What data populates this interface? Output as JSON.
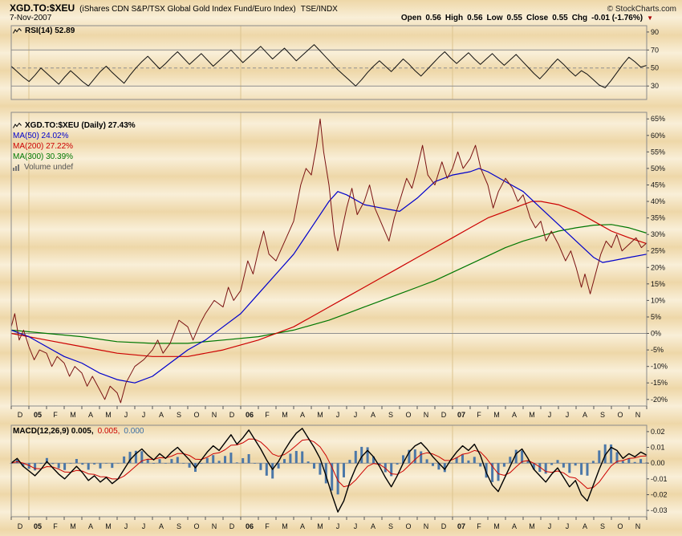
{
  "header": {
    "symbol": "XGD.TO:$XEU",
    "description": "(iShares CDN S&P/TSX Global Gold Index Fund/Euro Index)",
    "exchange": "TSE/INDX",
    "copyright": "© StockCharts.com",
    "date": "7-Nov-2007",
    "quote": {
      "open_label": "Open",
      "open": "0.56",
      "high_label": "High",
      "high": "0.56",
      "low_label": "Low",
      "low": "0.55",
      "close_label": "Close",
      "close": "0.55",
      "chg_label": "Chg",
      "chg": "-0.01 (-1.76%)",
      "chg_arrow": "▼"
    }
  },
  "legends": {
    "rsi": "RSI(14) 52.89",
    "price": [
      {
        "label": "XGD.TO:$XEU (Daily) 27.43%",
        "color": "#000000",
        "bold": true,
        "icon": "price-line-icon"
      },
      {
        "label": "MA(50) 24.02%",
        "color": "#0000CC",
        "bold": false,
        "icon": null
      },
      {
        "label": "MA(200) 27.22%",
        "color": "#CC0000",
        "bold": false,
        "icon": null
      },
      {
        "label": "MA(300) 30.39%",
        "color": "#007700",
        "bold": false,
        "icon": null
      },
      {
        "label": "Volume undef",
        "color": "#555555",
        "bold": false,
        "icon": "volume-bars-icon"
      }
    ],
    "macd": [
      {
        "text": "MACD(12,26,9) 0.005,",
        "color": "#000000"
      },
      {
        "text": "0.005,",
        "color": "#CC0000"
      },
      {
        "text": "0.000",
        "color": "#3A6EA5"
      }
    ]
  },
  "colors": {
    "background_band_dark": "#eed7a8",
    "background_band_light": "#f9efd8",
    "panel_border": "#8a8a8a",
    "price_line": "#7a1212",
    "ma50": "#0000CC",
    "ma200": "#CC0000",
    "ma300": "#007700",
    "rsi_line": "#111111",
    "macd_line": "#000000",
    "macd_signal": "#CC0000",
    "macd_histogram": "#4B77A8",
    "chg_arrow": "#AA0000"
  },
  "x_axis": {
    "year_positions": [
      1,
      13,
      25
    ],
    "labels": [
      {
        "label": "D"
      },
      {
        "label": "05",
        "bold": true
      },
      {
        "label": "F"
      },
      {
        "label": "M"
      },
      {
        "label": "A"
      },
      {
        "label": "M"
      },
      {
        "label": "J"
      },
      {
        "label": "J"
      },
      {
        "label": "A"
      },
      {
        "label": "S"
      },
      {
        "label": "O"
      },
      {
        "label": "N"
      },
      {
        "label": "D"
      },
      {
        "label": "06",
        "bold": true
      },
      {
        "label": "F"
      },
      {
        "label": "M"
      },
      {
        "label": "A"
      },
      {
        "label": "M"
      },
      {
        "label": "J"
      },
      {
        "label": "J"
      },
      {
        "label": "A"
      },
      {
        "label": "S"
      },
      {
        "label": "O"
      },
      {
        "label": "N"
      },
      {
        "label": "D"
      },
      {
        "label": "07",
        "bold": true
      },
      {
        "label": "F"
      },
      {
        "label": "M"
      },
      {
        "label": "A"
      },
      {
        "label": "M"
      },
      {
        "label": "J"
      },
      {
        "label": "J"
      },
      {
        "label": "A"
      },
      {
        "label": "S"
      },
      {
        "label": "O"
      },
      {
        "label": "N"
      }
    ]
  },
  "chart_data": [
    {
      "type": "line",
      "title": "RSI(14)",
      "current_value": 52.89,
      "xlim": [
        0,
        36
      ],
      "ylim": [
        15,
        97
      ],
      "yticks": [
        {
          "v": 90,
          "label": "90"
        },
        {
          "v": 70,
          "label": "70"
        },
        {
          "v": 50,
          "label": "50"
        },
        {
          "v": 30,
          "label": "30"
        }
      ],
      "hlines": [
        {
          "v": 70,
          "style": "solid"
        },
        {
          "v": 50,
          "style": "dash"
        },
        {
          "v": 30,
          "style": "solid"
        }
      ],
      "series": [
        {
          "name": "RSI(14)",
          "color": "#111111",
          "width": 1,
          "values": [
            52,
            46,
            40,
            35,
            42,
            50,
            44,
            38,
            32,
            40,
            47,
            41,
            35,
            30,
            38,
            46,
            52,
            45,
            39,
            33,
            42,
            50,
            57,
            63,
            56,
            49,
            55,
            62,
            68,
            61,
            54,
            60,
            66,
            59,
            52,
            58,
            64,
            70,
            63,
            56,
            62,
            68,
            74,
            67,
            60,
            66,
            72,
            65,
            58,
            64,
            70,
            76,
            69,
            62,
            55,
            48,
            42,
            36,
            30,
            37,
            45,
            52,
            58,
            52,
            46,
            53,
            60,
            54,
            47,
            41,
            48,
            55,
            62,
            68,
            61,
            55,
            61,
            67,
            60,
            54,
            60,
            66,
            59,
            53,
            59,
            65,
            58,
            51,
            44,
            38,
            45,
            53,
            60,
            54,
            47,
            41,
            47,
            43,
            37,
            31,
            28,
            36,
            45,
            54,
            62,
            57,
            51,
            52.9
          ]
        }
      ]
    },
    {
      "type": "line",
      "title": "XGD.TO:$XEU (Daily)",
      "current_value": 27.43,
      "xlim": [
        0,
        36
      ],
      "ylim": [
        -22,
        67
      ],
      "yticks": [
        {
          "v": 65,
          "label": "65%"
        },
        {
          "v": 60,
          "label": "60%"
        },
        {
          "v": 55,
          "label": "55%"
        },
        {
          "v": 50,
          "label": "50%"
        },
        {
          "v": 45,
          "label": "45%"
        },
        {
          "v": 40,
          "label": "40%"
        },
        {
          "v": 35,
          "label": "35%"
        },
        {
          "v": 30,
          "label": "30%"
        },
        {
          "v": 25,
          "label": "25%"
        },
        {
          "v": 20,
          "label": "20%"
        },
        {
          "v": 15,
          "label": "15%"
        },
        {
          "v": 10,
          "label": "10%"
        },
        {
          "v": 5,
          "label": "5%"
        },
        {
          "v": 0,
          "label": "0%"
        },
        {
          "v": -5,
          "label": "-5%"
        },
        {
          "v": -10,
          "label": "-10%"
        },
        {
          "v": -15,
          "label": "-15%"
        },
        {
          "v": -20,
          "label": "-20%"
        }
      ],
      "hlines": [
        {
          "v": 0,
          "style": "solid"
        }
      ],
      "series": [
        {
          "name": "XGD.TO:$XEU",
          "color": "#7a1212",
          "width": 1,
          "x": [
            0,
            0.2,
            0.45,
            0.7,
            1.0,
            1.3,
            1.6,
            2.0,
            2.3,
            2.6,
            3.0,
            3.3,
            3.6,
            4.0,
            4.3,
            4.6,
            5.0,
            5.3,
            5.6,
            6.0,
            6.2,
            6.5,
            7.0,
            7.5,
            8.0,
            8.3,
            8.6,
            9.0,
            9.5,
            10.0,
            10.3,
            10.7,
            11.0,
            11.5,
            12.0,
            12.3,
            12.6,
            13.0,
            13.4,
            13.7,
            14.0,
            14.3,
            14.6,
            15.0,
            15.5,
            16.0,
            16.4,
            16.7,
            17.0,
            17.3,
            17.5,
            17.7,
            18.0,
            18.3,
            18.5,
            18.8,
            19.0,
            19.3,
            19.6,
            20.0,
            20.3,
            20.6,
            21.0,
            21.4,
            21.7,
            22.0,
            22.4,
            22.7,
            23.0,
            23.3,
            23.6,
            24.0,
            24.4,
            24.7,
            25.0,
            25.3,
            25.6,
            26.0,
            26.3,
            26.6,
            27.0,
            27.3,
            27.6,
            28.0,
            28.4,
            28.7,
            29.0,
            29.4,
            29.7,
            30.0,
            30.3,
            30.6,
            31.0,
            31.4,
            31.7,
            32.0,
            32.3,
            32.5,
            32.8,
            33.0,
            33.4,
            33.7,
            34.0,
            34.3,
            34.6,
            35.0,
            35.4,
            35.7,
            36.0
          ],
          "y": [
            2,
            6,
            -2,
            1,
            -4,
            -8,
            -5,
            -6,
            -10,
            -7,
            -9,
            -13,
            -10,
            -12,
            -16,
            -13,
            -17,
            -20,
            -16,
            -18,
            -21,
            -15,
            -10,
            -8,
            -5,
            -2,
            -6,
            -3,
            4,
            2,
            -2,
            3,
            6,
            10,
            8,
            14,
            10,
            13,
            22,
            18,
            25,
            31,
            24,
            22,
            28,
            34,
            45,
            50,
            48,
            57,
            65,
            55,
            45,
            30,
            25,
            33,
            38,
            44,
            36,
            40,
            45,
            38,
            33,
            28,
            35,
            40,
            47,
            44,
            50,
            57,
            48,
            45,
            52,
            47,
            50,
            55,
            50,
            53,
            57,
            50,
            45,
            38,
            43,
            47,
            44,
            40,
            42,
            35,
            32,
            34,
            28,
            31,
            27,
            22,
            25,
            20,
            14,
            18,
            12,
            16,
            24,
            28,
            26,
            30,
            25,
            27,
            29,
            26,
            27.4
          ]
        },
        {
          "name": "MA(50)",
          "color": "#0000CC",
          "width": 1.2,
          "x": [
            0,
            1,
            2,
            3,
            4,
            5,
            6,
            7,
            8,
            9,
            10,
            11,
            12,
            13,
            14,
            15,
            16,
            17,
            18,
            18.5,
            19,
            20,
            21,
            22,
            23,
            24,
            25,
            26,
            26.5,
            27,
            28,
            29,
            30,
            31,
            32,
            33,
            33.5,
            34,
            35,
            36
          ],
          "y": [
            1,
            -1,
            -4,
            -7,
            -9,
            -12,
            -14,
            -15,
            -13,
            -9,
            -5,
            -2,
            2,
            6,
            12,
            18,
            24,
            32,
            40,
            43,
            42,
            39,
            38,
            37,
            41,
            46,
            48,
            49,
            50,
            49,
            46,
            43,
            38,
            33,
            28,
            23,
            21.5,
            22,
            23,
            24
          ]
        },
        {
          "name": "MA(200)",
          "color": "#CC0000",
          "width": 1.2,
          "x": [
            0,
            2,
            4,
            6,
            8,
            10,
            12,
            14,
            16,
            17,
            18,
            19,
            20,
            21,
            22,
            23,
            24,
            25,
            26,
            27,
            28,
            29,
            29.5,
            30,
            31,
            32,
            33,
            34,
            35,
            36
          ],
          "y": [
            0,
            -2,
            -4,
            -6,
            -7,
            -7,
            -5,
            -2,
            2,
            5,
            8,
            11,
            14,
            17,
            20,
            23,
            26,
            29,
            32,
            35,
            37,
            39,
            40,
            40,
            39,
            37,
            34,
            31,
            29,
            27.2
          ]
        },
        {
          "name": "MA(300)",
          "color": "#007700",
          "width": 1.2,
          "x": [
            0,
            2,
            4,
            6,
            8,
            10,
            12,
            14,
            16,
            18,
            19,
            20,
            21,
            22,
            23,
            24,
            25,
            26,
            27,
            28,
            29,
            30,
            31,
            32,
            33,
            34,
            35,
            36
          ],
          "y": [
            1,
            0,
            -1,
            -2.5,
            -3,
            -3,
            -2,
            -1,
            1,
            4,
            6,
            8,
            10,
            12,
            14,
            16,
            18.5,
            21,
            23.5,
            26,
            28,
            29.5,
            31,
            32,
            32.8,
            33,
            32,
            30.4
          ]
        }
      ]
    },
    {
      "type": "macd",
      "title": "MACD(12,26,9)",
      "current_values": [
        0.005,
        0.005,
        0.0
      ],
      "xlim": [
        0,
        36
      ],
      "ylim": [
        -0.034,
        0.024
      ],
      "yticks": [
        {
          "v": 0.02,
          "label": "0.02"
        },
        {
          "v": 0.01,
          "label": "0.01"
        },
        {
          "v": 0,
          "label": "0.00"
        },
        {
          "v": -0.01,
          "label": "-0.01"
        },
        {
          "v": -0.02,
          "label": "-0.02"
        },
        {
          "v": -0.03,
          "label": "-0.03"
        }
      ],
      "hlines": [
        {
          "v": 0,
          "style": "solid"
        }
      ],
      "macd_color": "#000000",
      "signal_color": "#CC0000",
      "histogram_color": "#4B77A8",
      "signal_ema_alpha": 0.3,
      "values": [
        0.0,
        0.003,
        -0.002,
        -0.005,
        -0.008,
        -0.004,
        0.001,
        -0.003,
        -0.007,
        -0.01,
        -0.006,
        -0.002,
        -0.006,
        -0.011,
        -0.008,
        -0.012,
        -0.009,
        -0.013,
        -0.01,
        -0.004,
        0.002,
        0.006,
        0.009,
        0.005,
        0.002,
        0.006,
        0.003,
        0.007,
        0.01,
        0.006,
        0.002,
        -0.003,
        0.002,
        0.007,
        0.011,
        0.008,
        0.013,
        0.018,
        0.012,
        0.016,
        0.021,
        0.015,
        0.009,
        0.002,
        -0.004,
        0.001,
        0.008,
        0.014,
        0.019,
        0.022,
        0.016,
        0.01,
        0.003,
        -0.008,
        -0.02,
        -0.031,
        -0.024,
        -0.012,
        -0.003,
        0.004,
        0.008,
        0.004,
        -0.002,
        -0.009,
        -0.015,
        -0.008,
        0.0,
        0.007,
        0.011,
        0.013,
        0.009,
        0.004,
        0.0,
        -0.004,
        0.002,
        0.007,
        0.011,
        0.008,
        0.012,
        0.005,
        -0.006,
        -0.014,
        -0.018,
        -0.01,
        -0.002,
        0.006,
        0.009,
        0.003,
        -0.004,
        -0.008,
        -0.012,
        -0.007,
        -0.003,
        -0.009,
        -0.015,
        -0.011,
        -0.02,
        -0.024,
        -0.014,
        -0.004,
        0.005,
        0.01,
        0.008,
        0.003,
        0.006,
        0.004,
        0.007,
        0.005
      ]
    }
  ]
}
